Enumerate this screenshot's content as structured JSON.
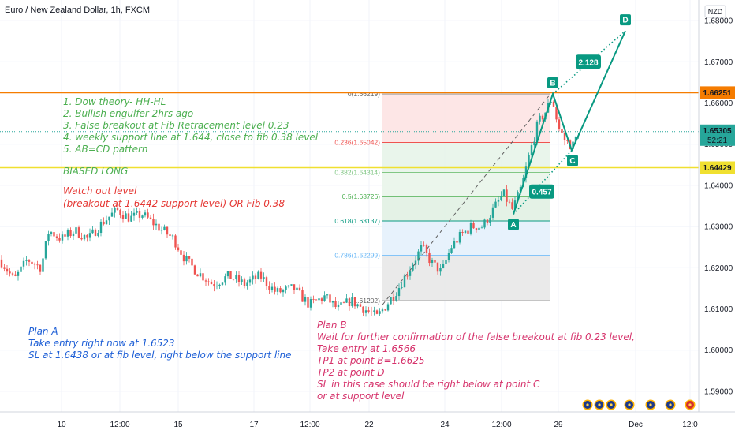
{
  "header": {
    "title": "Euro / New Zealand Dollar, 1h, FXCM",
    "currency": "NZD"
  },
  "colors": {
    "up": "#26a69a",
    "down": "#ef5350",
    "orange": "#f57c00",
    "yellow": "#f0e030",
    "green_note": "#4caf50",
    "red_note": "#e53935",
    "blue_note": "#1e5fd6",
    "pink_note": "#d6336c",
    "teal": "#089981"
  },
  "chart_data": {
    "type": "candlestick",
    "x_tick_labels": [
      "10",
      "12:00",
      "15",
      "17",
      "12:00",
      "22",
      "24",
      "12:00",
      "29",
      "Dec",
      "12:0"
    ],
    "ylim": [
      1.585,
      1.685
    ],
    "y_ticks": [
      1.59,
      1.6,
      1.61,
      1.62,
      1.63,
      1.64,
      1.65,
      1.66,
      1.67,
      1.68
    ],
    "y_tick_labels": [
      "1.59000",
      "1.60000",
      "1.61000",
      "1.62000",
      "1.63000",
      "1.64000",
      "1.65000",
      "1.66000",
      "1.67000",
      "1.68000"
    ],
    "price_path": [
      [
        0,
        1.622
      ],
      [
        18,
        1.617
      ],
      [
        35,
        1.622
      ],
      [
        52,
        1.62
      ],
      [
        62,
        1.629
      ],
      [
        78,
        1.627
      ],
      [
        95,
        1.629
      ],
      [
        112,
        1.627
      ],
      [
        130,
        1.631
      ],
      [
        148,
        1.634
      ],
      [
        165,
        1.632
      ],
      [
        180,
        1.633
      ],
      [
        200,
        1.63
      ],
      [
        220,
        1.627
      ],
      [
        235,
        1.622
      ],
      [
        250,
        1.619
      ],
      [
        270,
        1.616
      ],
      [
        290,
        1.618
      ],
      [
        310,
        1.616
      ],
      [
        330,
        1.618
      ],
      [
        350,
        1.614
      ],
      [
        372,
        1.615
      ],
      [
        392,
        1.611
      ],
      [
        412,
        1.613
      ],
      [
        428,
        1.61
      ],
      [
        445,
        1.612
      ],
      [
        462,
        1.61
      ],
      [
        478,
        1.608
      ],
      [
        490,
        1.611
      ],
      [
        505,
        1.615
      ],
      [
        520,
        1.62
      ],
      [
        535,
        1.625
      ],
      [
        548,
        1.621
      ],
      [
        560,
        1.619
      ],
      [
        572,
        1.625
      ],
      [
        585,
        1.628
      ],
      [
        598,
        1.63
      ],
      [
        612,
        1.63
      ],
      [
        625,
        1.634
      ],
      [
        638,
        1.638
      ],
      [
        650,
        1.634
      ],
      [
        662,
        1.64
      ],
      [
        672,
        1.648
      ],
      [
        682,
        1.655
      ],
      [
        692,
        1.658
      ],
      [
        700,
        1.6615
      ],
      [
        708,
        1.654
      ],
      [
        716,
        1.651
      ],
      [
        726,
        1.6495
      ],
      [
        734,
        1.653
      ]
    ],
    "horizontal_levels": [
      {
        "price": 1.66251,
        "label": "1.66251",
        "color": "orange"
      },
      {
        "price": 1.64429,
        "label": "1.64429",
        "color": "yellow"
      }
    ],
    "current_price": {
      "value": 1.65305,
      "label": "1.65305",
      "countdown": "52:21"
    },
    "fib_retracement": [
      {
        "level": 0,
        "label": "0(1.66219)",
        "price": 1.66219
      },
      {
        "level": 0.236,
        "label": "0.236(1.65042)",
        "price": 1.65042
      },
      {
        "level": 0.382,
        "label": "0.382(1.64314)",
        "price": 1.64314
      },
      {
        "level": 0.5,
        "label": "0.5(1.63726)",
        "price": 1.63726
      },
      {
        "level": 0.618,
        "label": "0.618(1.63137)",
        "price": 1.63137
      },
      {
        "level": 0.786,
        "label": "0.786(1.62299)",
        "price": 1.62299
      },
      {
        "level": 1,
        "label": "1(1.61202)",
        "price": 1.61202
      }
    ],
    "abcd_pattern": {
      "points": [
        {
          "name": "A",
          "price": 1.633
        },
        {
          "name": "B",
          "price": 1.6622
        },
        {
          "name": "C",
          "price": 1.6485
        },
        {
          "name": "D",
          "price": 1.6775
        }
      ],
      "ratios": [
        "0.457",
        "2.128"
      ]
    }
  },
  "notes": {
    "analysis": [
      "1. Dow theory- HH-HL",
      "2. Bullish engulfer 2hrs ago",
      "3. False breakout at Fib Retracement level 0.23",
      "4. weekly support line at 1.644, close to fib 0.38 level",
      "5. AB=CD pattern"
    ],
    "bias": "BIASED LONG",
    "watch": [
      "Watch out level",
      "(breakout at 1.6442 support level) OR Fib 0.38"
    ],
    "plan_a": [
      "Plan A",
      "Take entry right now at 1.6523",
      "SL at 1.6438 or at fib level, right below the support line"
    ],
    "plan_b": [
      "Plan B",
      "Wait for further confirmation of the false breakout at fib 0.23 level,",
      "Take entry at 1.6566",
      "TP1 at point B=1.6625",
      "TP2 at point D",
      "SL in this case should be right below at point C",
      "or at support level"
    ]
  },
  "events": {
    "icons": [
      "event-flag-icon",
      "event-flag-icon",
      "event-flag-icon",
      "event-flag-icon",
      "event-flag-icon",
      "event-flag-icon",
      "event-flag-icon",
      "event-flag-icon"
    ]
  }
}
